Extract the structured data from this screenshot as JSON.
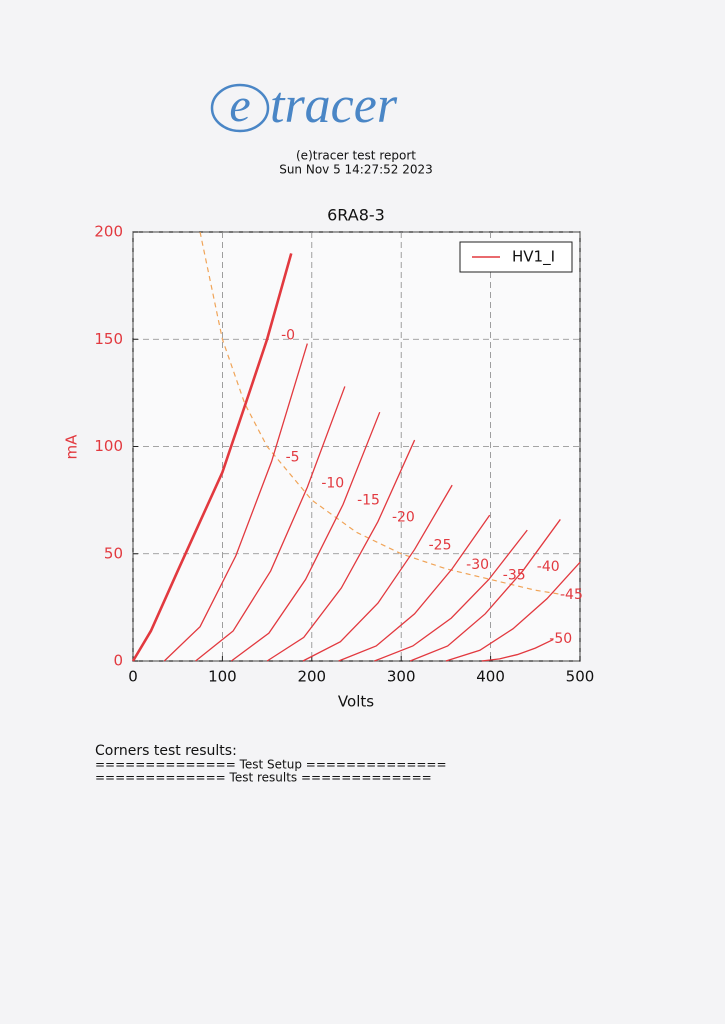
{
  "logo": {
    "letter": "e",
    "text": "tracer"
  },
  "header": {
    "title": "(e)tracer test report",
    "date": "Sun Nov 5 14:27:52 2023"
  },
  "chart_data": {
    "type": "line",
    "title": "6RA8-3",
    "x_label": "Volts",
    "y_label": "mA",
    "xlim": [
      0,
      500
    ],
    "xticks": [
      0,
      100,
      200,
      300,
      400,
      500
    ],
    "ylim": [
      0,
      200
    ],
    "yticks": [
      0,
      50,
      100,
      150,
      200
    ],
    "grid": true,
    "legend": "top-right",
    "series": [
      {
        "name": "HV1_I",
        "color": "#e2393f",
        "curves": [
          {
            "label": "-0",
            "linewidth": 2.6,
            "x": [
              0,
              20,
              50,
              100,
              130,
              150,
              177
            ],
            "values": [
              0,
              14,
              42,
              88,
              125,
              150,
              190
            ]
          },
          {
            "label": "-5",
            "linewidth": 1.3,
            "x": [
              35,
              75,
              115,
              155,
              195
            ],
            "values": [
              0,
              16,
              49,
              93,
              148
            ]
          },
          {
            "label": "-10",
            "linewidth": 1.3,
            "x": [
              70,
              112,
              154,
              195,
              237
            ],
            "values": [
              0,
              14,
              42,
              81,
              128
            ]
          },
          {
            "label": "-15",
            "linewidth": 1.3,
            "x": [
              110,
              152,
              193,
              235,
              276
            ],
            "values": [
              0,
              13,
              38,
              73,
              116
            ]
          },
          {
            "label": "-20",
            "linewidth": 1.3,
            "x": [
              150,
              191,
              233,
              274,
              315
            ],
            "values": [
              0,
              11,
              34,
              65,
              103
            ]
          },
          {
            "label": "-25",
            "linewidth": 1.3,
            "x": [
              190,
              232,
              274,
              315,
              357
            ],
            "values": [
              0,
              9,
              27,
              52,
              82
            ]
          },
          {
            "label": "-30",
            "linewidth": 1.3,
            "x": [
              230,
              272,
              315,
              357,
              399
            ],
            "values": [
              0,
              7,
              22,
              43,
              68
            ]
          },
          {
            "label": "-35",
            "linewidth": 1.3,
            "x": [
              270,
              313,
              356,
              398,
              441
            ],
            "values": [
              0,
              7,
              20,
              38,
              61
            ]
          },
          {
            "label": "-40",
            "linewidth": 1.3,
            "x": [
              310,
              352,
              394,
              436,
              478
            ],
            "values": [
              0,
              7,
              22,
              42,
              66
            ]
          },
          {
            "label": "-45",
            "linewidth": 1.3,
            "x": [
              350,
              388,
              425,
              463,
              500
            ],
            "values": [
              0,
              5,
              15,
              29,
              46
            ]
          },
          {
            "label": "-50",
            "linewidth": 1.3,
            "x": [
              390,
              410,
              430,
              450,
              470
            ],
            "values": [
              0,
              1,
              3,
              6,
              10
            ]
          }
        ]
      }
    ],
    "dissipation": {
      "color": "#f0a458",
      "x": [
        75,
        100,
        125,
        150,
        200,
        250,
        300,
        350,
        400,
        450,
        480
      ],
      "values": [
        200,
        150,
        120,
        100,
        75,
        60,
        50,
        43,
        38,
        33,
        31
      ]
    }
  },
  "results": {
    "heading": "Corners test results:",
    "lines": [
      "============== Test Setup ==============",
      "============= Test results ============="
    ]
  }
}
